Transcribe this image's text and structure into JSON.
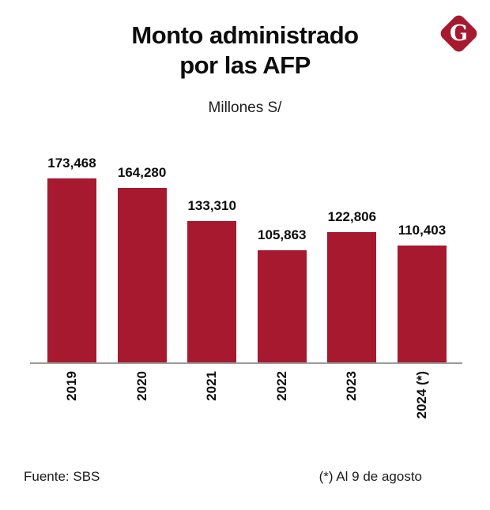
{
  "logo": {
    "letter": "G",
    "color": "#A6192E"
  },
  "title": {
    "line1": "Monto administrado",
    "line2": "por las AFP"
  },
  "subtitle": "Millones S/",
  "footer": {
    "source": "Fuente: SBS",
    "note": "(*) Al 9 de agosto"
  },
  "colors": {
    "bar": "#A6192E",
    "axis": "#9b9b9b",
    "background": "#ffffff",
    "text": "#0d0d0d"
  },
  "chart_data": {
    "type": "bar",
    "title": "Monto administrado por las AFP",
    "subtitle": "Millones S/",
    "categories": [
      "2019",
      "2020",
      "2021",
      "2022",
      "2023",
      "2024 (*)"
    ],
    "values": [
      173468,
      164280,
      133310,
      105863,
      122806,
      110403
    ],
    "value_labels": [
      "173,468",
      "164,280",
      "133,310",
      "105,863",
      "122,806",
      "110,403"
    ],
    "xlabel": "",
    "ylabel": "",
    "ylim": [
      0,
      180000
    ],
    "grid": false,
    "legend": "none",
    "bar_color": "#A6192E",
    "source": "Fuente: SBS",
    "footnote": "(*) Al 9 de agosto"
  }
}
